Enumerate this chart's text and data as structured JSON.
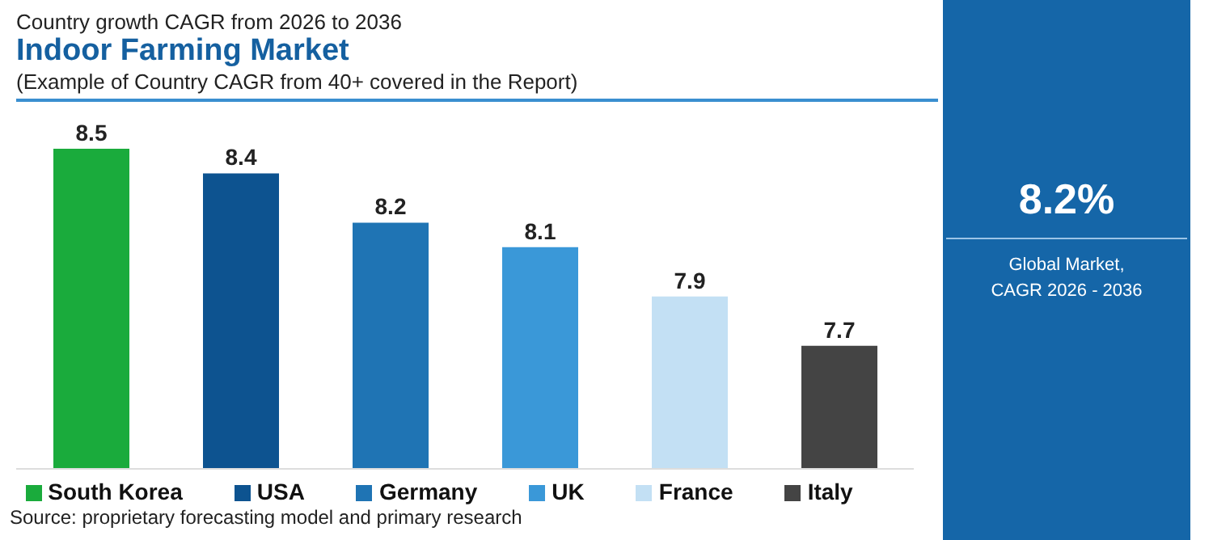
{
  "chart_data": {
    "type": "bar",
    "title": "Indoor Farming Market",
    "subtitle": "Country growth CAGR from 2026 to 2036",
    "annotations": [
      "(Example of Country CAGR from 40+ covered in the Report)",
      "8.2%",
      "Global Market,\nCAGR 2026 - 2036",
      "Source: proprietary forecasting model and primary research"
    ],
    "categories": [
      null,
      null,
      null,
      null,
      null,
      null
    ],
    "series": [
      {
        "name": "South Korea",
        "color": "#1aab3c",
        "values": [
          8.5,
          null,
          null,
          null,
          null,
          null
        ]
      },
      {
        "name": "USA",
        "color": "#0d5390",
        "values": [
          null,
          8.4,
          null,
          null,
          null,
          null
        ]
      },
      {
        "name": "Germany",
        "color": "#1f74b4",
        "values": [
          null,
          null,
          8.2,
          null,
          null,
          null
        ]
      },
      {
        "name": "UK",
        "color": "#3a98d8",
        "values": [
          null,
          null,
          null,
          8.1,
          null,
          null
        ]
      },
      {
        "name": "France",
        "color": "#c3e0f4",
        "values": [
          null,
          null,
          null,
          null,
          7.9,
          null
        ]
      },
      {
        "name": "Italy",
        "color": "#444444",
        "values": [
          null,
          null,
          null,
          null,
          null,
          7.7
        ]
      }
    ],
    "stacked": true,
    "ylim": [
      7.2,
      8.5
    ],
    "data_labels": true,
    "tick_labels": false,
    "legend": "bottom",
    "grid": false
  }
}
